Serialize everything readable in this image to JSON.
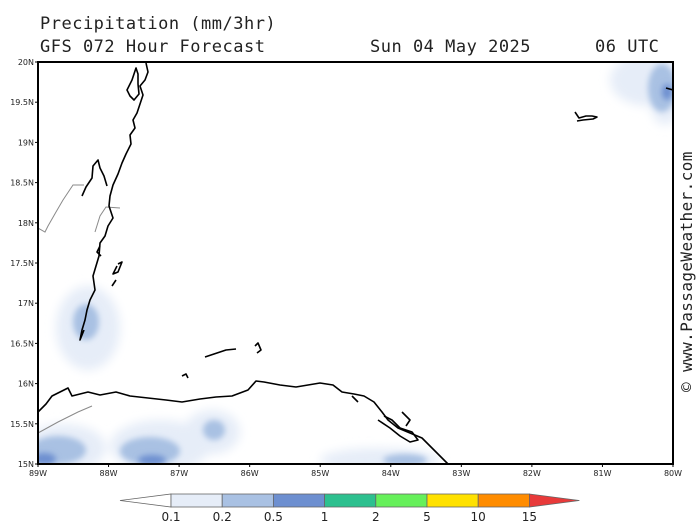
{
  "title": "Precipitation (mm/3hr)",
  "subtitle": "GFS 072 Hour Forecast",
  "valid_date": "Sun 04 May 2025",
  "valid_time": "06 UTC",
  "credit": "© www.PassageWeather.com",
  "map": {
    "lon_range": [
      -89,
      -80
    ],
    "lat_range": [
      15,
      20
    ],
    "lat_labels": [
      "20N",
      "19.5N",
      "19N",
      "18.5N",
      "18N",
      "17.5N",
      "17N",
      "16.5N",
      "16N",
      "15.5N",
      "15N"
    ],
    "lon_labels": [
      "89W",
      "88W",
      "87W",
      "86W",
      "85W",
      "84W",
      "83W",
      "82W",
      "81W",
      "80W"
    ]
  },
  "legend": {
    "labels": [
      "0.1",
      "0.2",
      "0.5",
      "1",
      "2",
      "5",
      "10",
      "15"
    ],
    "colors": [
      "#ffffff",
      "#e6edf8",
      "#a9c1e3",
      "#6d8fd0",
      "#2dc08f",
      "#66f05a",
      "#ffe100",
      "#ff8c00",
      "#e83a3a"
    ]
  }
}
